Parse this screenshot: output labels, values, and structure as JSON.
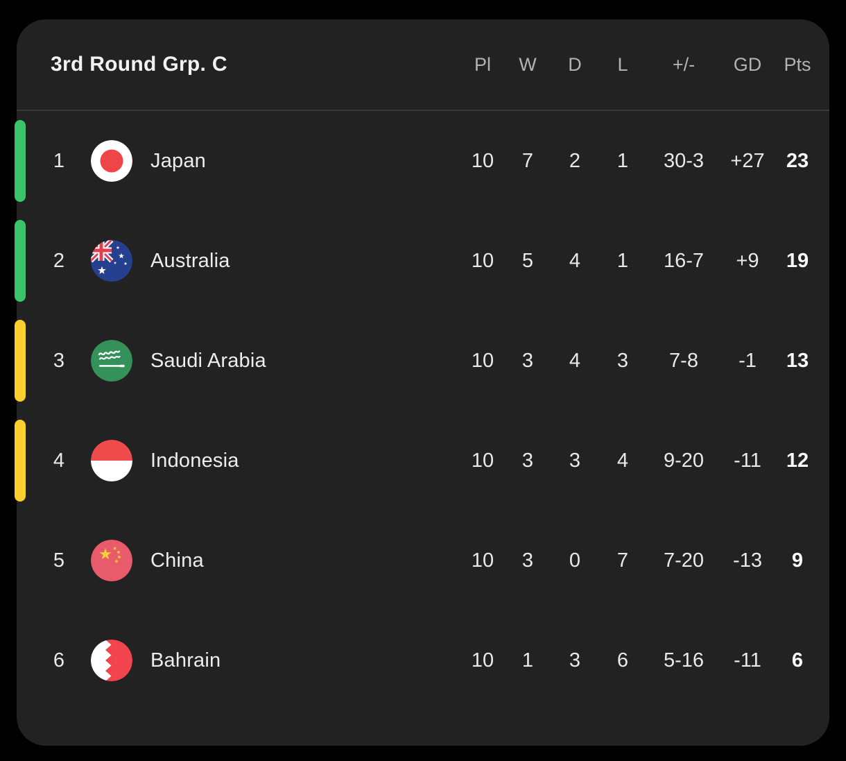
{
  "table": {
    "title": "3rd Round Grp. C",
    "columns": [
      "Pl",
      "W",
      "D",
      "L",
      "+/-",
      "GD",
      "Pts"
    ],
    "rows": [
      {
        "pos": "1",
        "team": "Japan",
        "flag": "japan",
        "indicator": "green",
        "pl": "10",
        "w": "7",
        "d": "2",
        "l": "1",
        "plusminus": "30-3",
        "gd": "+27",
        "pts": "23"
      },
      {
        "pos": "2",
        "team": "Australia",
        "flag": "australia",
        "indicator": "green",
        "pl": "10",
        "w": "5",
        "d": "4",
        "l": "1",
        "plusminus": "16-7",
        "gd": "+9",
        "pts": "19"
      },
      {
        "pos": "3",
        "team": "Saudi Arabia",
        "flag": "saudi-arabia",
        "indicator": "yellow",
        "pl": "10",
        "w": "3",
        "d": "4",
        "l": "3",
        "plusminus": "7-8",
        "gd": "-1",
        "pts": "13"
      },
      {
        "pos": "4",
        "team": "Indonesia",
        "flag": "indonesia",
        "indicator": "yellow",
        "pl": "10",
        "w": "3",
        "d": "3",
        "l": "4",
        "plusminus": "9-20",
        "gd": "-11",
        "pts": "12"
      },
      {
        "pos": "5",
        "team": "China",
        "flag": "china",
        "indicator": "none",
        "pl": "10",
        "w": "3",
        "d": "0",
        "l": "7",
        "plusminus": "7-20",
        "gd": "-13",
        "pts": "9"
      },
      {
        "pos": "6",
        "team": "Bahrain",
        "flag": "bahrain",
        "indicator": "none",
        "pl": "10",
        "w": "1",
        "d": "3",
        "l": "6",
        "plusminus": "5-16",
        "gd": "-11",
        "pts": "6"
      }
    ],
    "colors": {
      "green": "#3ac369",
      "yellow": "#f9d02e",
      "card_bg": "#232222",
      "outer_bg": "#000000",
      "divider": "#3b3a3a",
      "header_text": "#b3b3b3",
      "text": "#e9e9e9"
    }
  }
}
